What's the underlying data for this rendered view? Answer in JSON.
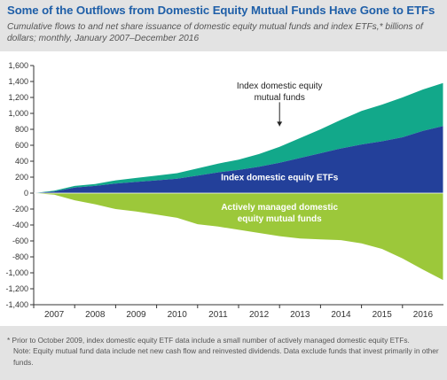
{
  "title": "Some of the Outflows from Domestic Equity Mutual Funds Have Gone to ETFs",
  "subtitle": "Cumulative flows to and net share issuance of domestic equity mutual funds and index ETFs,* billions of dollars; monthly, January 2007–December 2016",
  "notes": {
    "footnote": "* Prior to October 2009, index domestic equity ETF data include a small number of actively managed domestic equity ETFs.",
    "note": "Note: Equity mutual fund data include net new cash flow and reinvested dividends. Data exclude funds that invest primarily in other funds."
  },
  "colors": {
    "index_mf": "#12a88a",
    "index_etf": "#23409a",
    "active_mf": "#9cc83a",
    "title": "#1f5fa8"
  },
  "chart_data": {
    "type": "area",
    "title": "Some of the Outflows from Domestic Equity Mutual Funds Have Gone to ETFs",
    "xlabel": "",
    "ylabel": "",
    "x_tick_labels": [
      "2007",
      "2008",
      "2009",
      "2010",
      "2011",
      "2012",
      "2013",
      "2014",
      "2015",
      "2016"
    ],
    "y_tick_labels": [
      "1,600",
      "1,400",
      "1,200",
      "1,000",
      "800",
      "600",
      "400",
      "200",
      "0",
      "-200",
      "-400",
      "-600",
      "-800",
      "-1,000",
      "-1,200",
      "-1,400"
    ],
    "ylim": [
      -1400,
      1600
    ],
    "xlim": [
      2007.0,
      2017.0
    ],
    "grid": false,
    "x": [
      2007.0,
      2007.5,
      2008.0,
      2008.5,
      2009.0,
      2009.5,
      2010.0,
      2010.5,
      2011.0,
      2011.5,
      2012.0,
      2012.5,
      2013.0,
      2013.5,
      2014.0,
      2014.5,
      2015.0,
      2015.5,
      2016.0,
      2016.5,
      2016.99
    ],
    "series": [
      {
        "name": "Index domestic equity ETFs",
        "values": [
          0,
          20,
          70,
          90,
          120,
          140,
          160,
          180,
          220,
          260,
          290,
          330,
          380,
          440,
          500,
          560,
          610,
          650,
          700,
          780,
          840
        ]
      },
      {
        "name": "Index domestic equity mutual funds",
        "values": [
          0,
          10,
          20,
          25,
          40,
          50,
          60,
          70,
          90,
          110,
          130,
          160,
          200,
          250,
          300,
          360,
          420,
          460,
          500,
          520,
          540
        ]
      },
      {
        "name": "Actively managed domestic equity mutual funds",
        "values": [
          0,
          -20,
          -90,
          -140,
          -200,
          -230,
          -270,
          -310,
          -390,
          -420,
          -460,
          -500,
          -540,
          -570,
          -580,
          -590,
          -630,
          -700,
          -820,
          -960,
          -1090
        ]
      }
    ],
    "annotations": [
      {
        "text": "Index domestic equity mutual funds",
        "series": "Index domestic equity mutual funds",
        "arrow": true
      },
      {
        "text": "Index domestic equity ETFs",
        "series": "Index domestic equity ETFs"
      },
      {
        "text": "Actively managed domestic equity mutual funds",
        "series": "Actively managed domestic equity mutual funds"
      }
    ]
  }
}
